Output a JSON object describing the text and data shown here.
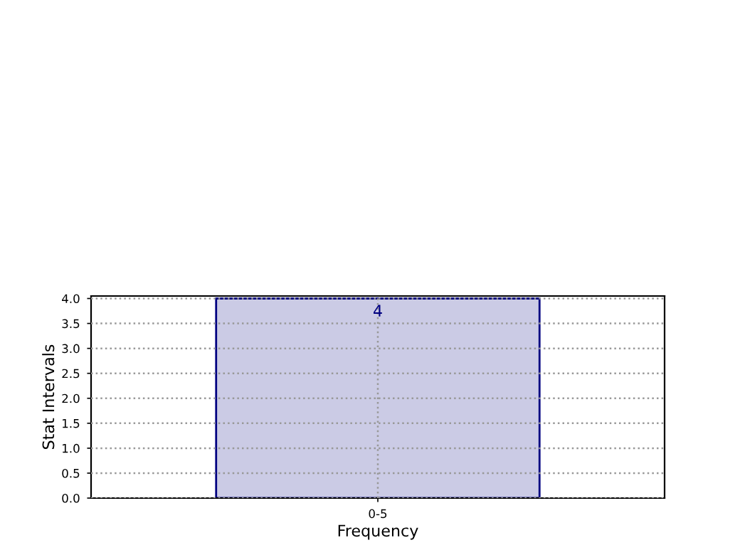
{
  "chart_data": {
    "type": "bar",
    "xlabel": "Frequency",
    "ylabel": "Stat Intervals",
    "categories": [
      "0-5"
    ],
    "series": [
      {
        "color": "#cbcbe5",
        "values": [
          4
        ],
        "value_labels": [
          "4"
        ]
      }
    ],
    "ylim": [
      0,
      4.05
    ],
    "yticks": [
      {
        "value": 0,
        "label": "0.0"
      },
      {
        "value": 0.5,
        "label": "0.5"
      },
      {
        "value": 1.0,
        "label": "1.0"
      },
      {
        "value": 1.5,
        "label": "1.5"
      },
      {
        "value": 2.0,
        "label": "2.0"
      },
      {
        "value": 2.5,
        "label": "2.5"
      },
      {
        "value": 3.0,
        "label": "3.0"
      },
      {
        "value": 3.5,
        "label": "3.5"
      },
      {
        "value": 4.0,
        "label": "4.0"
      }
    ],
    "grid": true
  }
}
